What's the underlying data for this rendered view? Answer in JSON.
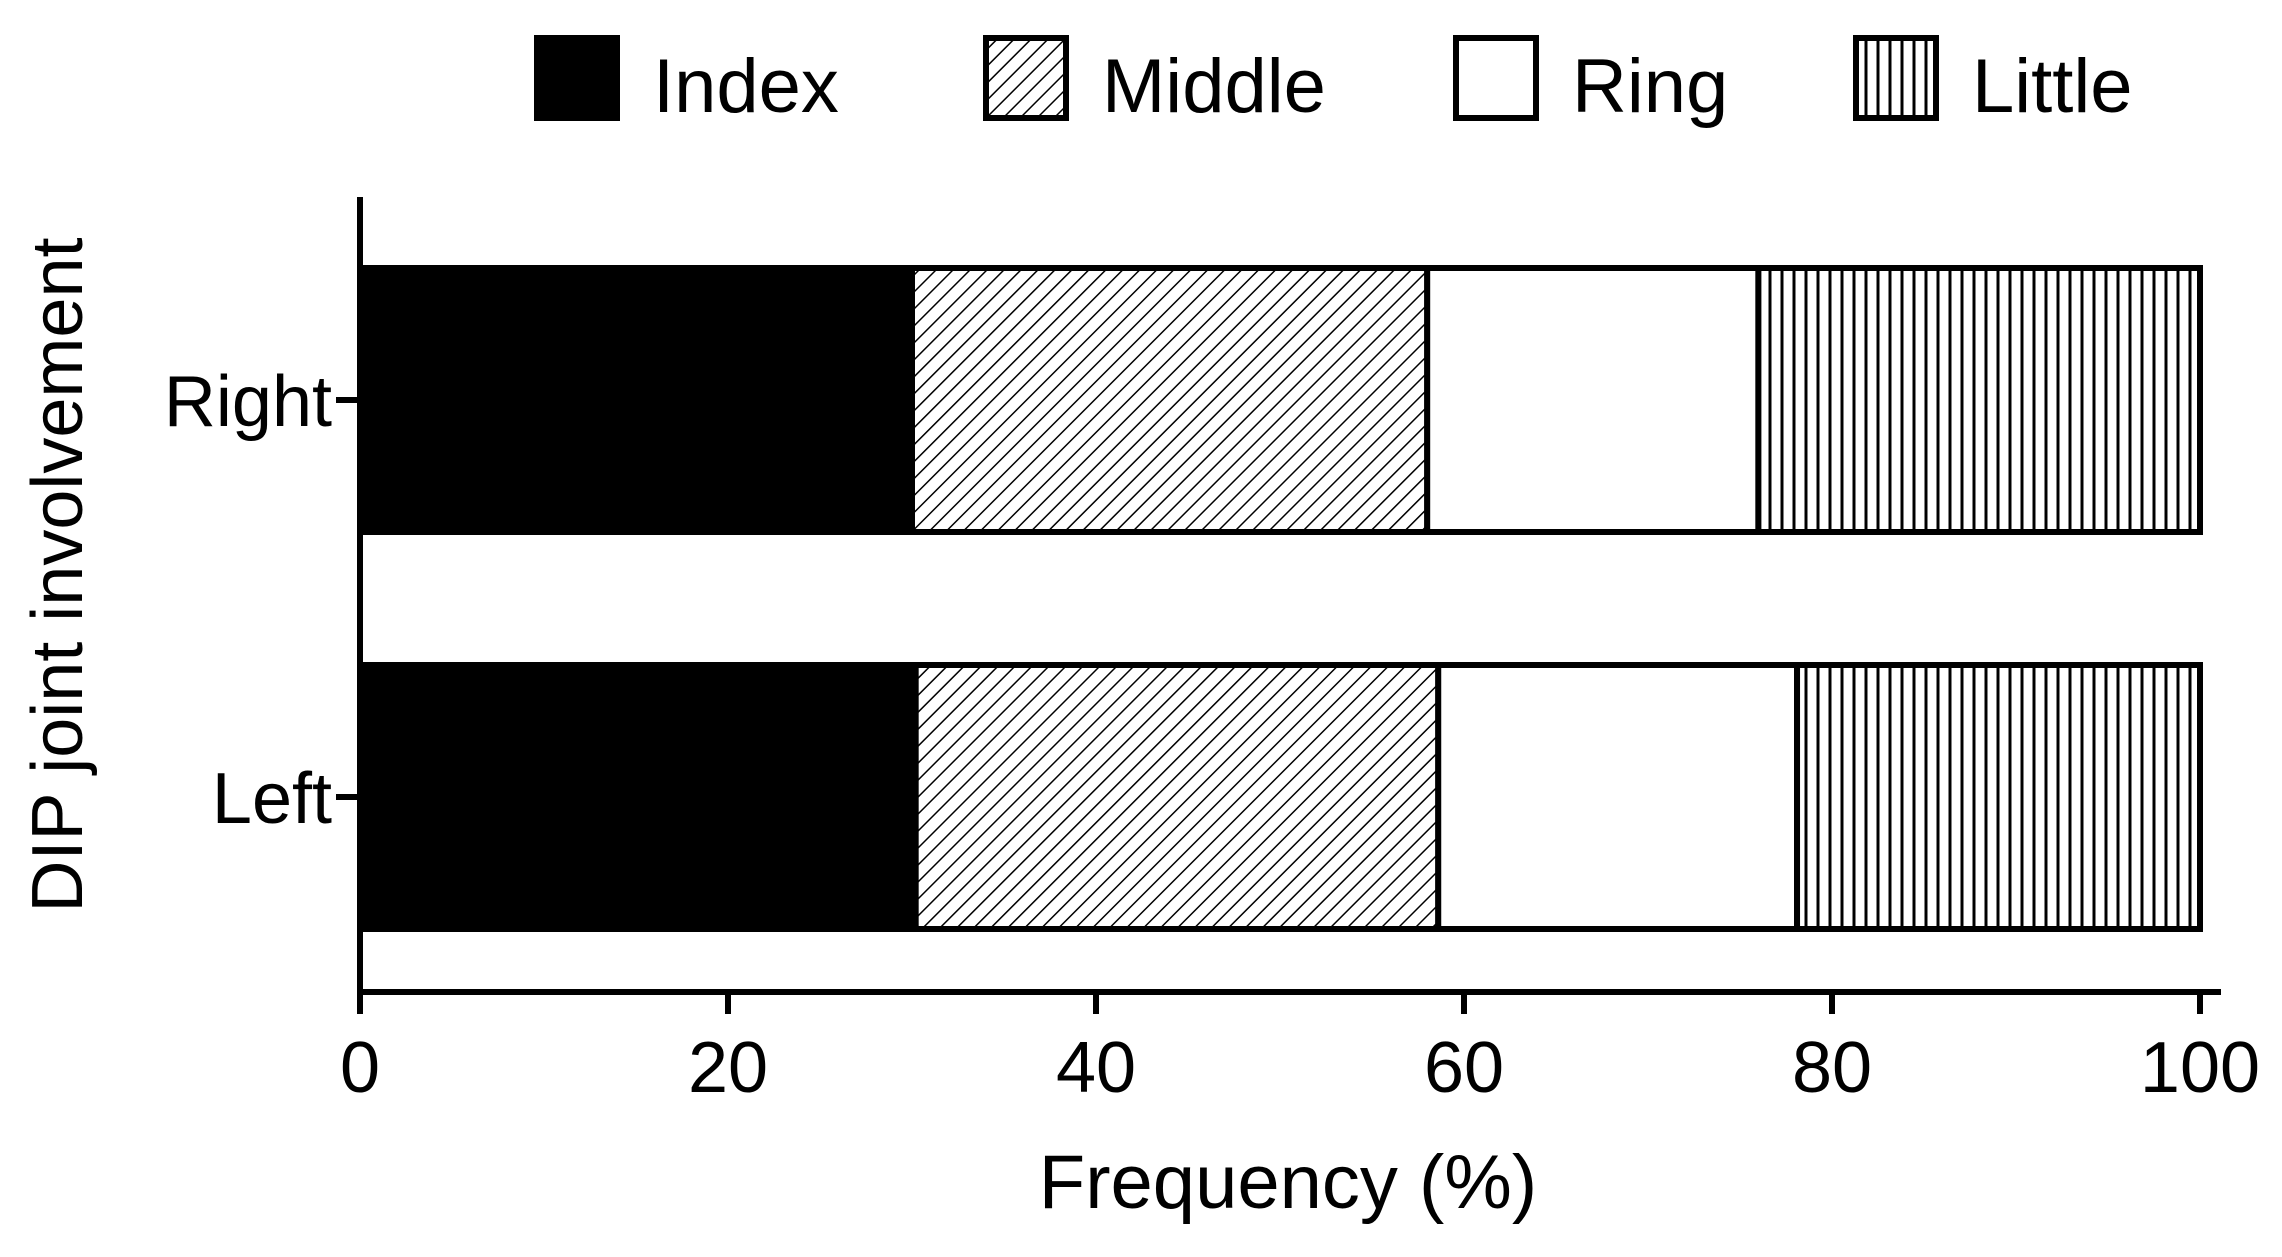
{
  "chart_data": {
    "type": "bar",
    "orientation": "horizontal",
    "stacked": true,
    "title": "",
    "xlabel": "Frequency (%)",
    "ylabel": "DIP joint involvement",
    "xlim": [
      0,
      100
    ],
    "x_ticks": [
      "0",
      "20",
      "40",
      "60",
      "80",
      "100"
    ],
    "categories": [
      "Right",
      "Left"
    ],
    "series": [
      {
        "name": "Index",
        "values": [
          30,
          30.2
        ],
        "fill": "#000000",
        "pattern": "solid"
      },
      {
        "name": "Middle",
        "values": [
          28,
          28.4
        ],
        "fill": "#ffffff",
        "pattern": "diagonal-hatch"
      },
      {
        "name": "Ring",
        "values": [
          18,
          19.5
        ],
        "fill": "#ffffff",
        "pattern": "none"
      },
      {
        "name": "Little",
        "values": [
          24,
          21.9
        ],
        "fill": "#ffffff",
        "pattern": "vertical-lines"
      }
    ],
    "legend": {
      "position": "top",
      "entries": [
        "Index",
        "Middle",
        "Ring",
        "Little"
      ]
    },
    "grid": false
  }
}
